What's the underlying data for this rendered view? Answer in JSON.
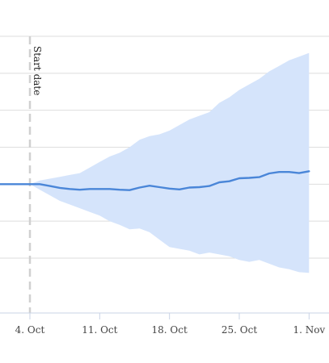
{
  "chart_data": {
    "type": "area",
    "title": "",
    "xlabel": "",
    "ylabel": "",
    "x_ticks": [
      {
        "label": "4. Oct",
        "date": "2021-10-04"
      },
      {
        "label": "11. Oct",
        "date": "2021-10-11"
      },
      {
        "label": "18. Oct",
        "date": "2021-10-18"
      },
      {
        "label": "25. Oct",
        "date": "2021-10-25"
      },
      {
        "label": "1. Nov",
        "date": "2021-11-01"
      }
    ],
    "xlim": [
      "2021-10-01",
      "2021-11-03"
    ],
    "ylim": [
      -2,
      5
    ],
    "y_gridlines": [
      -2,
      -1,
      0,
      1,
      2,
      3,
      4
    ],
    "y_tick_labels_visible": false,
    "grid": true,
    "legend": "none",
    "annotation": {
      "label": "Start date",
      "date": "2021-10-04",
      "style": "dashed vertical line"
    },
    "series": [
      {
        "kind": "line",
        "color": "#4a86d8",
        "points": [
          [
            "2021-10-01",
            0.0
          ],
          [
            "2021-10-02",
            0.0
          ],
          [
            "2021-10-03",
            0.0
          ],
          [
            "2021-10-04",
            0.0
          ],
          [
            "2021-10-05",
            0.0
          ],
          [
            "2021-10-06",
            -0.05
          ],
          [
            "2021-10-07",
            -0.1
          ],
          [
            "2021-10-08",
            -0.13
          ],
          [
            "2021-10-09",
            -0.15
          ],
          [
            "2021-10-10",
            -0.13
          ],
          [
            "2021-10-11",
            -0.13
          ],
          [
            "2021-10-12",
            -0.13
          ],
          [
            "2021-10-13",
            -0.15
          ],
          [
            "2021-10-14",
            -0.16
          ],
          [
            "2021-10-15",
            -0.09
          ],
          [
            "2021-10-16",
            -0.04
          ],
          [
            "2021-10-17",
            -0.08
          ],
          [
            "2021-10-18",
            -0.12
          ],
          [
            "2021-10-19",
            -0.14
          ],
          [
            "2021-10-20",
            -0.09
          ],
          [
            "2021-10-21",
            -0.08
          ],
          [
            "2021-10-22",
            -0.05
          ],
          [
            "2021-10-23",
            0.05
          ],
          [
            "2021-10-24",
            0.08
          ],
          [
            "2021-10-25",
            0.16
          ],
          [
            "2021-10-26",
            0.17
          ],
          [
            "2021-10-27",
            0.19
          ],
          [
            "2021-10-28",
            0.29
          ],
          [
            "2021-10-29",
            0.33
          ],
          [
            "2021-10-30",
            0.33
          ],
          [
            "2021-10-31",
            0.3
          ],
          [
            "2021-11-01",
            0.35
          ]
        ]
      },
      {
        "kind": "band",
        "color": "#d5e4fb",
        "points": [
          [
            "2021-10-04",
            0.0,
            0.0
          ],
          [
            "2021-10-05",
            -0.15,
            0.1
          ],
          [
            "2021-10-06",
            -0.3,
            0.15
          ],
          [
            "2021-10-07",
            -0.45,
            0.2
          ],
          [
            "2021-10-08",
            -0.55,
            0.25
          ],
          [
            "2021-10-09",
            -0.65,
            0.3
          ],
          [
            "2021-10-10",
            -0.75,
            0.45
          ],
          [
            "2021-10-11",
            -0.85,
            0.6
          ],
          [
            "2021-10-12",
            -1.0,
            0.75
          ],
          [
            "2021-10-13",
            -1.1,
            0.85
          ],
          [
            "2021-10-14",
            -1.22,
            1.0
          ],
          [
            "2021-10-15",
            -1.2,
            1.2
          ],
          [
            "2021-10-16",
            -1.3,
            1.3
          ],
          [
            "2021-10-17",
            -1.5,
            1.35
          ],
          [
            "2021-10-18",
            -1.7,
            1.45
          ],
          [
            "2021-10-19",
            -1.75,
            1.6
          ],
          [
            "2021-10-20",
            -1.8,
            1.75
          ],
          [
            "2021-10-21",
            -1.9,
            1.85
          ],
          [
            "2021-10-22",
            -1.85,
            1.95
          ],
          [
            "2021-10-23",
            -1.9,
            2.2
          ],
          [
            "2021-10-24",
            -1.95,
            2.35
          ],
          [
            "2021-10-25",
            -2.05,
            2.55
          ],
          [
            "2021-10-26",
            -2.1,
            2.7
          ],
          [
            "2021-10-27",
            -2.05,
            2.85
          ],
          [
            "2021-10-28",
            -2.15,
            3.05
          ],
          [
            "2021-10-29",
            -2.25,
            3.2
          ],
          [
            "2021-10-30",
            -2.3,
            3.35
          ],
          [
            "2021-10-31",
            -2.38,
            3.45
          ],
          [
            "2021-11-01",
            -2.4,
            3.55
          ]
        ]
      }
    ]
  }
}
